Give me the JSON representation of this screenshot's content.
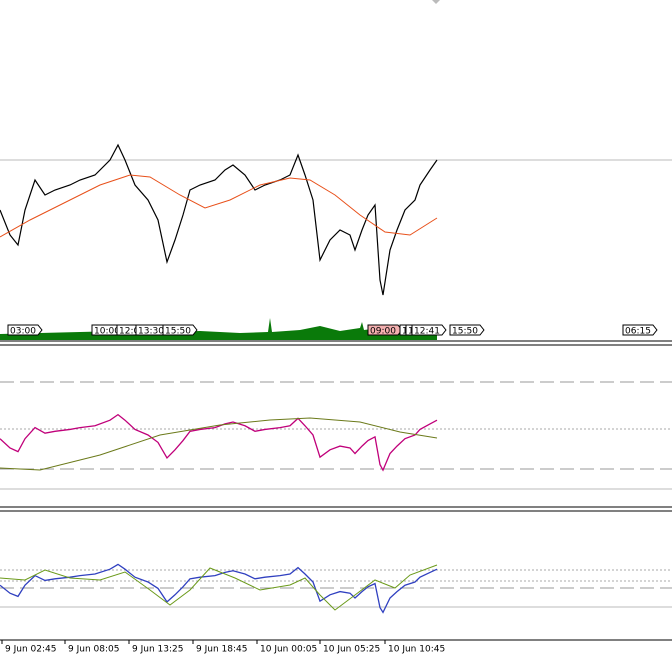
{
  "time_markers": [
    "03:00",
    "10:00",
    "12:0",
    "13:30",
    "15:50",
    "09:00",
    "1",
    "1",
    "12:41",
    "15:50",
    "06:15"
  ],
  "time_axis": [
    "9 Jun 02:45",
    "9 Jun 08:05",
    "9 Jun 13:25",
    "9 Jun 18:45",
    "10 Jun 00:05",
    "10 Jun 05:25",
    "10 Jun 10:45"
  ]
}
